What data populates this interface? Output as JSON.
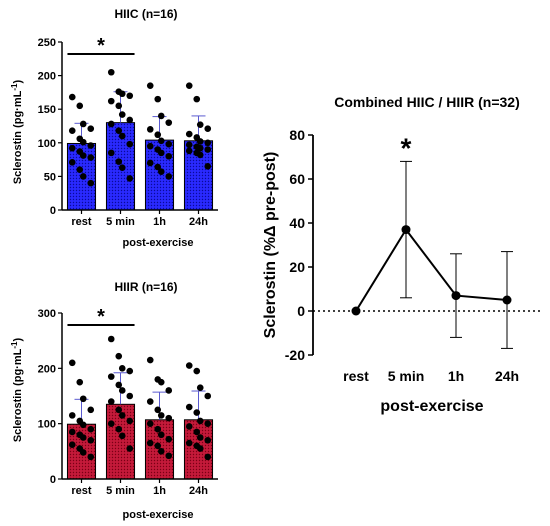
{
  "chart_data": [
    {
      "type": "bar",
      "title": "HIIC (n=16)",
      "xlabel": "post-exercise",
      "ylabel": "Sclerostin (pg·mL",
      "ylabel_sup": "-1",
      "ylabel_close": ")",
      "categories": [
        "rest",
        "5 min",
        "1h",
        "24h"
      ],
      "values": [
        99,
        130,
        104,
        103
      ],
      "errors": [
        30,
        46,
        35,
        37
      ],
      "ylim": [
        0,
        250
      ],
      "yticks": [
        0,
        50,
        100,
        150,
        200,
        250
      ],
      "bar_color": "#1a1aff",
      "bar_pattern": "dots",
      "significance": {
        "from": "rest",
        "to": "5 min",
        "label": "*"
      },
      "points": [
        [
          168,
          155,
          128,
          121,
          118,
          106,
          101,
          96,
          92,
          87,
          81,
          78,
          71,
          60,
          50,
          40
        ],
        [
          205,
          176,
          173,
          170,
          162,
          155,
          142,
          134,
          128,
          118,
          110,
          98,
          85,
          72,
          63,
          47
        ],
        [
          185,
          165,
          140,
          130,
          120,
          112,
          103,
          98,
          95,
          90,
          85,
          80,
          70,
          64,
          57,
          50
        ],
        [
          185,
          165,
          127,
          121,
          113,
          108,
          102,
          100,
          97,
          94,
          92,
          90,
          88,
          85,
          82,
          65
        ]
      ]
    },
    {
      "type": "bar",
      "title": "HIIR (n=16)",
      "xlabel": "post-exercise",
      "ylabel": "Sclerostin (pg·mL",
      "ylabel_sup": "-1",
      "ylabel_close": ")",
      "categories": [
        "rest",
        "5 min",
        "1h",
        "24h"
      ],
      "values": [
        99,
        135,
        107,
        107
      ],
      "errors": [
        45,
        57,
        50,
        52
      ],
      "ylim": [
        0,
        300
      ],
      "yticks": [
        0,
        100,
        200,
        300
      ],
      "bar_color": "#b5001e",
      "bar_pattern": "dots",
      "significance": {
        "from": "rest",
        "to": "5 min",
        "label": "*"
      },
      "points": [
        [
          210,
          175,
          145,
          125,
          115,
          105,
          98,
          90,
          85,
          80,
          75,
          70,
          62,
          55,
          48,
          40
        ],
        [
          253,
          222,
          200,
          195,
          185,
          170,
          160,
          150,
          140,
          125,
          115,
          105,
          100,
          90,
          78,
          55
        ],
        [
          215,
          180,
          175,
          160,
          140,
          125,
          115,
          110,
          100,
          90,
          80,
          72,
          65,
          60,
          50,
          42
        ],
        [
          205,
          195,
          165,
          150,
          130,
          120,
          105,
          100,
          95,
          85,
          75,
          70,
          65,
          60,
          55,
          40
        ]
      ]
    },
    {
      "type": "line",
      "title": "Combined HIIC / HIIR (n=32)",
      "xlabel": "post-exercise",
      "ylabel": "Sclerostin (%Δ pre-post)",
      "categories": [
        "rest",
        "5 min",
        "1h",
        "24h"
      ],
      "values": [
        0,
        37,
        7,
        5
      ],
      "err_upper": [
        0,
        68,
        26,
        27
      ],
      "err_lower": [
        0,
        6,
        -12,
        -17
      ],
      "ylim": [
        -20,
        80
      ],
      "yticks": [
        -20,
        0,
        20,
        40,
        60,
        80
      ],
      "zero_line": "dotted",
      "significance": {
        "at": "5 min",
        "label": "*"
      }
    }
  ]
}
